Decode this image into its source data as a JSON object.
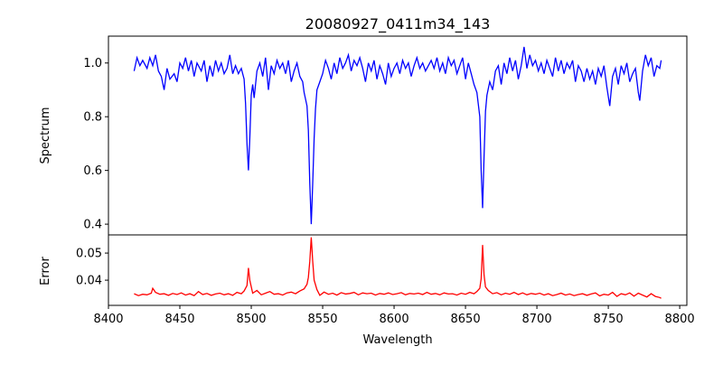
{
  "chart_data": [
    {
      "type": "line",
      "title": "20080927_0411m34_143",
      "xlabel": "",
      "ylabel": "Spectrum",
      "xlim": [
        8400,
        8805
      ],
      "ylim": [
        0.36,
        1.1
      ],
      "yticks": [
        0.4,
        0.6,
        0.8,
        1.0
      ],
      "ytick_labels": [
        "0.4",
        "0.6",
        "0.8",
        "1.0"
      ],
      "grid": false,
      "color": "#0000ff",
      "x": [
        8418,
        8420,
        8422,
        8424,
        8427,
        8429,
        8431,
        8433,
        8435,
        8437,
        8439,
        8441,
        8443,
        8446,
        8448,
        8450,
        8452,
        8454,
        8456,
        8458,
        8460,
        8462,
        8465,
        8467,
        8469,
        8471,
        8473,
        8475,
        8477,
        8479,
        8481,
        8483,
        8485,
        8487,
        8489,
        8491,
        8493,
        8495,
        8496,
        8497,
        8498,
        8499,
        8500,
        8501,
        8502,
        8504,
        8506,
        8508,
        8510,
        8512,
        8514,
        8516,
        8518,
        8520,
        8522,
        8524,
        8526,
        8528,
        8530,
        8532,
        8534,
        8536,
        8537,
        8539,
        8540,
        8541,
        8542,
        8543,
        8544,
        8545,
        8546,
        8548,
        8550,
        8552,
        8554,
        8556,
        8558,
        8560,
        8562,
        8564,
        8566,
        8568,
        8570,
        8572,
        8574,
        8576,
        8578,
        8580,
        8582,
        8584,
        8586,
        8588,
        8590,
        8592,
        8594,
        8596,
        8598,
        8600,
        8602,
        8604,
        8606,
        8608,
        8610,
        8612,
        8614,
        8616,
        8618,
        8620,
        8622,
        8624,
        8626,
        8628,
        8630,
        8632,
        8634,
        8636,
        8638,
        8640,
        8642,
        8644,
        8646,
        8648,
        8650,
        8652,
        8654,
        8656,
        8658,
        8660,
        8661,
        8662,
        8663,
        8664,
        8665,
        8667,
        8669,
        8671,
        8673,
        8675,
        8677,
        8679,
        8681,
        8683,
        8685,
        8687,
        8689,
        8691,
        8693,
        8695,
        8697,
        8699,
        8701,
        8703,
        8705,
        8707,
        8709,
        8711,
        8713,
        8715,
        8717,
        8719,
        8721,
        8723,
        8725,
        8727,
        8729,
        8731,
        8733,
        8735,
        8737,
        8739,
        8741,
        8743,
        8745,
        8747,
        8749,
        8751,
        8753,
        8755,
        8757,
        8759,
        8761,
        8763,
        8765,
        8767,
        8769,
        8771,
        8772,
        8774,
        8776,
        8778,
        8780,
        8782,
        8784,
        8786,
        8787
      ],
      "y": [
        0.97,
        1.02,
        0.99,
        1.01,
        0.98,
        1.02,
        0.99,
        1.03,
        0.97,
        0.95,
        0.9,
        0.98,
        0.94,
        0.96,
        0.93,
        1.0,
        0.98,
        1.02,
        0.97,
        1.01,
        0.95,
        1.0,
        0.97,
        1.01,
        0.93,
        0.99,
        0.95,
        1.01,
        0.97,
        1.0,
        0.96,
        0.98,
        1.03,
        0.96,
        0.99,
        0.96,
        0.98,
        0.94,
        0.85,
        0.7,
        0.6,
        0.72,
        0.88,
        0.92,
        0.87,
        0.97,
        1.0,
        0.95,
        1.02,
        0.9,
        0.99,
        0.96,
        1.01,
        0.98,
        1.0,
        0.96,
        1.01,
        0.93,
        0.97,
        1.0,
        0.95,
        0.93,
        0.89,
        0.84,
        0.75,
        0.55,
        0.4,
        0.55,
        0.72,
        0.83,
        0.9,
        0.93,
        0.96,
        1.01,
        0.98,
        0.94,
        1.0,
        0.96,
        1.02,
        0.98,
        1.0,
        1.03,
        0.97,
        1.01,
        0.99,
        1.02,
        0.98,
        0.93,
        1.0,
        0.97,
        1.01,
        0.94,
        0.99,
        0.96,
        0.92,
        1.0,
        0.95,
        0.98,
        1.0,
        0.96,
        1.01,
        0.98,
        1.0,
        0.95,
        0.99,
        1.02,
        0.98,
        1.0,
        0.97,
        0.99,
        1.01,
        0.98,
        1.02,
        0.97,
        1.0,
        0.96,
        1.02,
        0.99,
        1.01,
        0.96,
        0.99,
        1.02,
        0.94,
        1.0,
        0.96,
        0.92,
        0.89,
        0.8,
        0.6,
        0.46,
        0.65,
        0.82,
        0.88,
        0.93,
        0.9,
        0.97,
        0.99,
        0.92,
        1.0,
        0.96,
        1.02,
        0.97,
        1.01,
        0.94,
        0.99,
        1.06,
        0.98,
        1.03,
        0.99,
        1.01,
        0.97,
        1.0,
        0.96,
        1.01,
        0.98,
        0.95,
        1.02,
        0.97,
        1.01,
        0.96,
        1.0,
        0.98,
        1.01,
        0.93,
        0.99,
        0.97,
        0.93,
        0.98,
        0.94,
        0.97,
        0.92,
        0.98,
        0.95,
        0.99,
        0.91,
        0.84,
        0.95,
        0.98,
        0.92,
        0.99,
        0.96,
        1.0,
        0.93,
        0.96,
        0.98,
        0.89,
        0.86,
        0.97,
        1.03,
        0.99,
        1.02,
        0.95,
        0.99,
        0.98,
        1.01
      ]
    },
    {
      "type": "line",
      "title": "",
      "xlabel": "Wavelength",
      "ylabel": "Error",
      "xlim": [
        8400,
        8805
      ],
      "ylim": [
        0.0307,
        0.0567
      ],
      "xticks": [
        8400,
        8450,
        8500,
        8550,
        8600,
        8650,
        8700,
        8750,
        8800
      ],
      "xtick_labels": [
        "8400",
        "8450",
        "8500",
        "8550",
        "8600",
        "8650",
        "8700",
        "8750",
        "8800"
      ],
      "yticks": [
        0.04,
        0.05
      ],
      "ytick_labels": [
        "0.04",
        "0.05"
      ],
      "grid": false,
      "color": "#ff0000",
      "x": [
        8418,
        8421,
        8424,
        8427,
        8430,
        8431,
        8433,
        8436,
        8439,
        8442,
        8445,
        8448,
        8451,
        8454,
        8457,
        8460,
        8463,
        8466,
        8469,
        8472,
        8475,
        8478,
        8481,
        8484,
        8487,
        8490,
        8493,
        8495,
        8497,
        8498,
        8499,
        8501,
        8504,
        8507,
        8510,
        8513,
        8516,
        8519,
        8522,
        8525,
        8528,
        8531,
        8534,
        8537,
        8539,
        8540,
        8541,
        8542,
        8543,
        8544,
        8546,
        8548,
        8551,
        8554,
        8557,
        8560,
        8563,
        8566,
        8569,
        8572,
        8575,
        8578,
        8581,
        8584,
        8587,
        8590,
        8593,
        8596,
        8599,
        8602,
        8605,
        8608,
        8611,
        8614,
        8617,
        8620,
        8623,
        8626,
        8629,
        8632,
        8635,
        8638,
        8641,
        8644,
        8647,
        8650,
        8653,
        8656,
        8658,
        8660,
        8661,
        8662,
        8663,
        8664,
        8666,
        8669,
        8672,
        8675,
        8678,
        8681,
        8684,
        8687,
        8690,
        8693,
        8696,
        8699,
        8702,
        8705,
        8708,
        8711,
        8714,
        8717,
        8720,
        8723,
        8726,
        8729,
        8732,
        8735,
        8738,
        8741,
        8744,
        8747,
        8750,
        8753,
        8756,
        8759,
        8762,
        8765,
        8768,
        8771,
        8774,
        8777,
        8780,
        8783,
        8786,
        8787
      ],
      "y": [
        0.035,
        0.0343,
        0.0348,
        0.0346,
        0.0352,
        0.037,
        0.0355,
        0.0348,
        0.035,
        0.0344,
        0.0351,
        0.0347,
        0.0353,
        0.0345,
        0.035,
        0.0343,
        0.0358,
        0.0347,
        0.0351,
        0.0344,
        0.0349,
        0.0352,
        0.0346,
        0.035,
        0.0344,
        0.0355,
        0.035,
        0.036,
        0.038,
        0.0445,
        0.04,
        0.0352,
        0.0362,
        0.0346,
        0.0352,
        0.0358,
        0.0348,
        0.035,
        0.0345,
        0.0353,
        0.0356,
        0.035,
        0.036,
        0.0368,
        0.0385,
        0.041,
        0.047,
        0.0558,
        0.047,
        0.04,
        0.0365,
        0.0344,
        0.0356,
        0.0348,
        0.0352,
        0.0345,
        0.0354,
        0.0349,
        0.0351,
        0.0355,
        0.0346,
        0.0353,
        0.035,
        0.0352,
        0.0345,
        0.0351,
        0.0348,
        0.0353,
        0.0347,
        0.035,
        0.0354,
        0.0346,
        0.0351,
        0.0349,
        0.0352,
        0.0347,
        0.0355,
        0.0348,
        0.0351,
        0.0346,
        0.0353,
        0.0349,
        0.035,
        0.0345,
        0.0352,
        0.0348,
        0.0355,
        0.035,
        0.0358,
        0.037,
        0.0405,
        0.053,
        0.042,
        0.0375,
        0.0362,
        0.035,
        0.0354,
        0.0346,
        0.0352,
        0.0348,
        0.0355,
        0.0347,
        0.0353,
        0.0346,
        0.0351,
        0.0348,
        0.0352,
        0.0345,
        0.035,
        0.0343,
        0.0347,
        0.0352,
        0.0345,
        0.0349,
        0.0343,
        0.0347,
        0.035,
        0.0344,
        0.0349,
        0.0353,
        0.0342,
        0.0348,
        0.0345,
        0.0355,
        0.034,
        0.035,
        0.0346,
        0.0353,
        0.0341,
        0.0352,
        0.0345,
        0.0338,
        0.035,
        0.034,
        0.0336,
        0.0333
      ]
    }
  ]
}
